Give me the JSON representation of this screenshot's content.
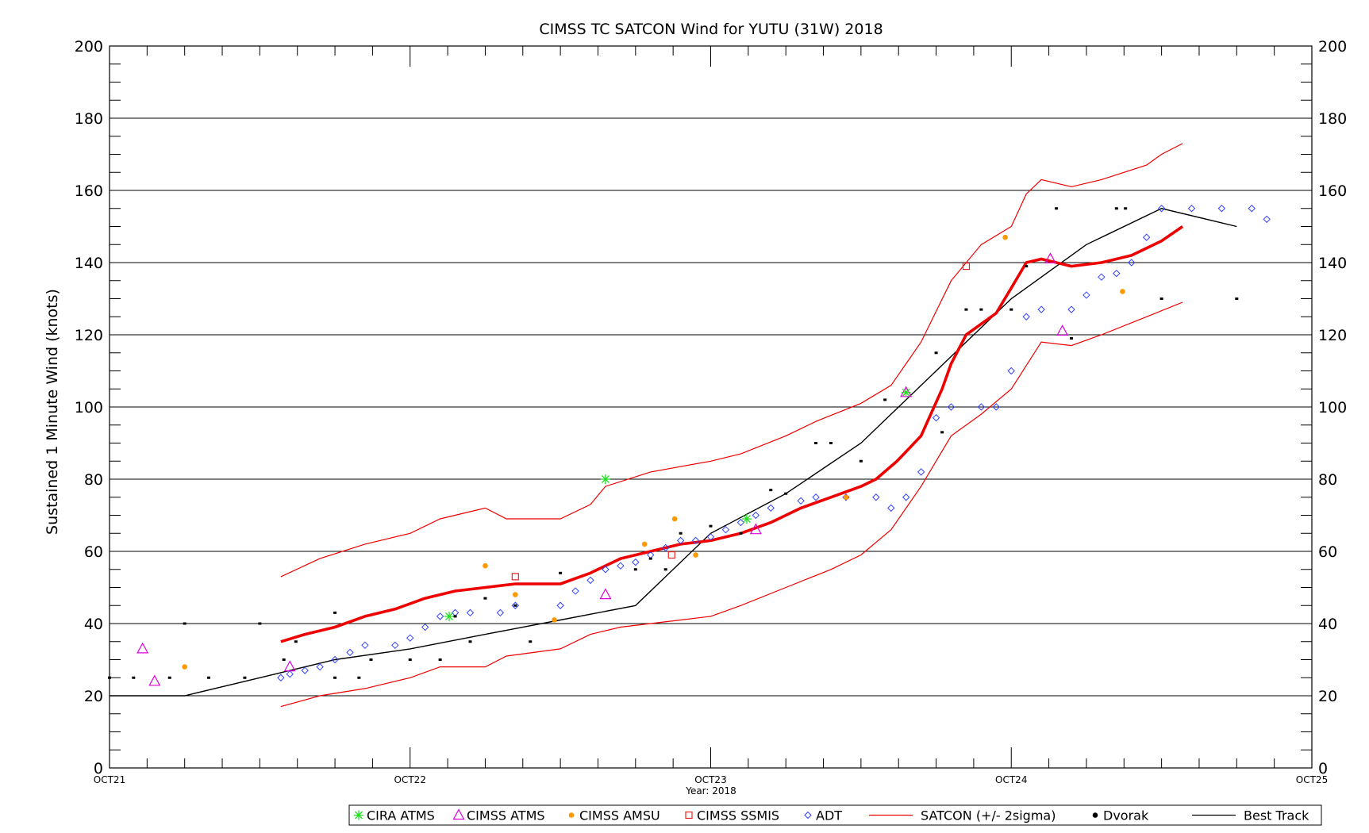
{
  "chart_data": {
    "type": "scatter",
    "title": "CIMSS TC SATCON Wind for YUTU (31W) 2018",
    "ylabel": "Sustained 1 Minute Wind (knots)",
    "xlabel": "Year: 2018",
    "x_unit": "days since OCT21 00Z",
    "xlim": [
      0,
      4
    ],
    "ylim": [
      0,
      200
    ],
    "y_ticks": [
      0,
      20,
      40,
      60,
      80,
      100,
      120,
      140,
      160,
      180,
      200
    ],
    "x_ticks": [
      {
        "x": 0,
        "label": "OCT21"
      },
      {
        "x": 1,
        "label": "OCT22"
      },
      {
        "x": 2,
        "label": "OCT23"
      },
      {
        "x": 3,
        "label": "OCT24"
      },
      {
        "x": 4,
        "label": "OCT25"
      }
    ],
    "grid": true,
    "legend_placement": "bottom",
    "legend": [
      {
        "label": "CIRA ATMS",
        "marker": "star",
        "color": "#22dd22"
      },
      {
        "label": "CIMSS ATMS",
        "marker": "triangle",
        "color": "#dd00dd"
      },
      {
        "label": "CIMSS AMSU",
        "marker": "dot",
        "color": "#ff9900"
      },
      {
        "label": "CIMSS SSMIS",
        "marker": "square",
        "color": "#ee2222"
      },
      {
        "label": "ADT",
        "marker": "diamond",
        "color": "#3344ff"
      },
      {
        "label": "SATCON (+/- 2sigma)",
        "marker": "line",
        "color": "#ee0000"
      },
      {
        "label": "Dvorak",
        "marker": "dot",
        "color": "#000000"
      },
      {
        "label": "Best Track",
        "marker": "line",
        "color": "#000000"
      }
    ],
    "series": [
      {
        "name": "Best Track",
        "color": "#000000",
        "points": [
          [
            0,
            20
          ],
          [
            0.25,
            20
          ],
          [
            0.5,
            25
          ],
          [
            0.75,
            30
          ],
          [
            1,
            33
          ],
          [
            1.25,
            37
          ],
          [
            1.5,
            41
          ],
          [
            1.75,
            45
          ],
          [
            2,
            65
          ],
          [
            2.25,
            76
          ],
          [
            2.5,
            90
          ],
          [
            2.75,
            110
          ],
          [
            3,
            130
          ],
          [
            3.25,
            145
          ],
          [
            3.5,
            155
          ],
          [
            3.75,
            150
          ]
        ]
      },
      {
        "name": "SATCON",
        "color": "#ee0000",
        "points": [
          [
            0.57,
            35
          ],
          [
            0.65,
            37
          ],
          [
            0.75,
            39
          ],
          [
            0.85,
            42
          ],
          [
            0.95,
            44
          ],
          [
            1.05,
            47
          ],
          [
            1.15,
            49
          ],
          [
            1.25,
            50
          ],
          [
            1.35,
            51
          ],
          [
            1.45,
            51
          ],
          [
            1.5,
            51
          ],
          [
            1.6,
            54
          ],
          [
            1.7,
            58
          ],
          [
            1.8,
            60
          ],
          [
            1.9,
            62
          ],
          [
            2,
            63
          ],
          [
            2.1,
            65
          ],
          [
            2.2,
            68
          ],
          [
            2.3,
            72
          ],
          [
            2.4,
            75
          ],
          [
            2.5,
            78
          ],
          [
            2.55,
            80
          ],
          [
            2.62,
            85
          ],
          [
            2.7,
            92
          ],
          [
            2.77,
            105
          ],
          [
            2.8,
            112
          ],
          [
            2.85,
            120
          ],
          [
            2.95,
            126
          ],
          [
            3,
            133
          ],
          [
            3.05,
            140
          ],
          [
            3.1,
            141
          ],
          [
            3.15,
            140
          ],
          [
            3.2,
            139
          ],
          [
            3.3,
            140
          ],
          [
            3.4,
            142
          ],
          [
            3.5,
            146
          ],
          [
            3.57,
            150
          ]
        ]
      },
      {
        "name": "SATCON +2sigma",
        "color": "#ee0000",
        "points": [
          [
            0.57,
            53
          ],
          [
            0.7,
            58
          ],
          [
            0.85,
            62
          ],
          [
            1,
            65
          ],
          [
            1.1,
            69
          ],
          [
            1.25,
            72
          ],
          [
            1.32,
            69
          ],
          [
            1.5,
            69
          ],
          [
            1.6,
            73
          ],
          [
            1.65,
            78
          ],
          [
            1.8,
            82
          ],
          [
            2,
            85
          ],
          [
            2.1,
            87
          ],
          [
            2.25,
            92
          ],
          [
            2.35,
            96
          ],
          [
            2.5,
            101
          ],
          [
            2.6,
            106
          ],
          [
            2.7,
            118
          ],
          [
            2.8,
            135
          ],
          [
            2.9,
            145
          ],
          [
            3,
            150
          ],
          [
            3.05,
            159
          ],
          [
            3.1,
            163
          ],
          [
            3.2,
            161
          ],
          [
            3.3,
            163
          ],
          [
            3.45,
            167
          ],
          [
            3.5,
            170
          ],
          [
            3.57,
            173
          ]
        ]
      },
      {
        "name": "SATCON -2sigma",
        "color": "#ee0000",
        "points": [
          [
            0.57,
            17
          ],
          [
            0.7,
            20
          ],
          [
            0.85,
            22
          ],
          [
            1,
            25
          ],
          [
            1.1,
            28
          ],
          [
            1.25,
            28
          ],
          [
            1.32,
            31
          ],
          [
            1.5,
            33
          ],
          [
            1.6,
            37
          ],
          [
            1.7,
            39
          ],
          [
            1.9,
            41
          ],
          [
            2,
            42
          ],
          [
            2.1,
            45
          ],
          [
            2.25,
            50
          ],
          [
            2.4,
            55
          ],
          [
            2.5,
            59
          ],
          [
            2.6,
            66
          ],
          [
            2.7,
            78
          ],
          [
            2.8,
            92
          ],
          [
            2.9,
            98
          ],
          [
            3,
            105
          ],
          [
            3.1,
            118
          ],
          [
            3.2,
            117
          ],
          [
            3.3,
            120
          ],
          [
            3.45,
            125
          ],
          [
            3.57,
            129
          ]
        ]
      },
      {
        "name": "ADT",
        "color": "#3344ff",
        "points": [
          [
            0.57,
            25
          ],
          [
            0.6,
            26
          ],
          [
            0.65,
            27
          ],
          [
            0.7,
            28
          ],
          [
            0.75,
            30
          ],
          [
            0.8,
            32
          ],
          [
            0.85,
            34
          ],
          [
            0.95,
            34
          ],
          [
            1,
            36
          ],
          [
            1.05,
            39
          ],
          [
            1.1,
            42
          ],
          [
            1.15,
            43
          ],
          [
            1.2,
            43
          ],
          [
            1.3,
            43
          ],
          [
            1.35,
            45
          ],
          [
            1.5,
            45
          ],
          [
            1.55,
            49
          ],
          [
            1.6,
            52
          ],
          [
            1.65,
            55
          ],
          [
            1.7,
            56
          ],
          [
            1.75,
            57
          ],
          [
            1.8,
            59
          ],
          [
            1.85,
            61
          ],
          [
            1.9,
            63
          ],
          [
            1.95,
            63
          ],
          [
            2,
            64
          ],
          [
            2.05,
            66
          ],
          [
            2.1,
            68
          ],
          [
            2.15,
            70
          ],
          [
            2.2,
            72
          ],
          [
            2.3,
            74
          ],
          [
            2.35,
            75
          ],
          [
            2.45,
            75
          ],
          [
            2.55,
            75
          ],
          [
            2.6,
            72
          ],
          [
            2.65,
            75
          ],
          [
            2.7,
            82
          ],
          [
            2.75,
            97
          ],
          [
            2.8,
            100
          ],
          [
            2.9,
            100
          ],
          [
            2.95,
            100
          ],
          [
            3,
            110
          ],
          [
            3.05,
            125
          ],
          [
            3.1,
            127
          ],
          [
            3.2,
            127
          ],
          [
            3.25,
            131
          ],
          [
            3.3,
            136
          ],
          [
            3.35,
            137
          ],
          [
            3.4,
            140
          ],
          [
            3.45,
            147
          ],
          [
            3.5,
            155
          ],
          [
            3.6,
            155
          ],
          [
            3.7,
            155
          ],
          [
            3.8,
            155
          ],
          [
            3.85,
            152
          ]
        ]
      },
      {
        "name": "CIMSS ATMS",
        "color": "#dd00dd",
        "points": [
          [
            0.11,
            33
          ],
          [
            0.15,
            24
          ],
          [
            0.6,
            28
          ],
          [
            1.65,
            48
          ],
          [
            2.15,
            66
          ],
          [
            2.65,
            104
          ],
          [
            3.13,
            141
          ],
          [
            3.17,
            121
          ]
        ]
      },
      {
        "name": "CIRA ATMS",
        "color": "#22dd22",
        "points": [
          [
            1.13,
            42
          ],
          [
            1.65,
            80
          ],
          [
            2.12,
            69
          ],
          [
            2.65,
            104
          ]
        ]
      },
      {
        "name": "CIMSS AMSU",
        "color": "#ff9900",
        "points": [
          [
            0.25,
            28
          ],
          [
            1.25,
            56
          ],
          [
            1.35,
            48
          ],
          [
            1.48,
            41
          ],
          [
            1.78,
            62
          ],
          [
            1.88,
            69
          ],
          [
            1.95,
            59
          ],
          [
            2.45,
            75
          ],
          [
            2.98,
            147
          ],
          [
            3.37,
            132
          ]
        ]
      },
      {
        "name": "CIMSS SSMIS",
        "color": "#ee2222",
        "points": [
          [
            1.35,
            53
          ],
          [
            1.87,
            59
          ],
          [
            2.85,
            139
          ]
        ]
      },
      {
        "name": "Dvorak",
        "color": "#000000",
        "points": [
          [
            0,
            25
          ],
          [
            0.08,
            25
          ],
          [
            0.2,
            25
          ],
          [
            0.25,
            40
          ],
          [
            0.33,
            25
          ],
          [
            0.45,
            25
          ],
          [
            0.5,
            40
          ],
          [
            0.58,
            30
          ],
          [
            0.62,
            35
          ],
          [
            0.75,
            25
          ],
          [
            0.75,
            43
          ],
          [
            0.83,
            25
          ],
          [
            0.87,
            30
          ],
          [
            1,
            30
          ],
          [
            1.1,
            30
          ],
          [
            1.15,
            42
          ],
          [
            1.2,
            35
          ],
          [
            1.25,
            47
          ],
          [
            1.35,
            45
          ],
          [
            1.4,
            35
          ],
          [
            1.5,
            54
          ],
          [
            1.75,
            55
          ],
          [
            1.8,
            58
          ],
          [
            1.85,
            55
          ],
          [
            1.9,
            65
          ],
          [
            2,
            67
          ],
          [
            2.1,
            65
          ],
          [
            2.2,
            77
          ],
          [
            2.25,
            76
          ],
          [
            2.35,
            90
          ],
          [
            2.4,
            90
          ],
          [
            2.5,
            85
          ],
          [
            2.58,
            102
          ],
          [
            2.75,
            115
          ],
          [
            2.77,
            93
          ],
          [
            2.85,
            127
          ],
          [
            2.9,
            127
          ],
          [
            3,
            127
          ],
          [
            3.05,
            139
          ],
          [
            3.15,
            155
          ],
          [
            3.2,
            119
          ],
          [
            3.35,
            155
          ],
          [
            3.38,
            155
          ],
          [
            3.5,
            130
          ],
          [
            3.75,
            130
          ]
        ]
      }
    ]
  }
}
